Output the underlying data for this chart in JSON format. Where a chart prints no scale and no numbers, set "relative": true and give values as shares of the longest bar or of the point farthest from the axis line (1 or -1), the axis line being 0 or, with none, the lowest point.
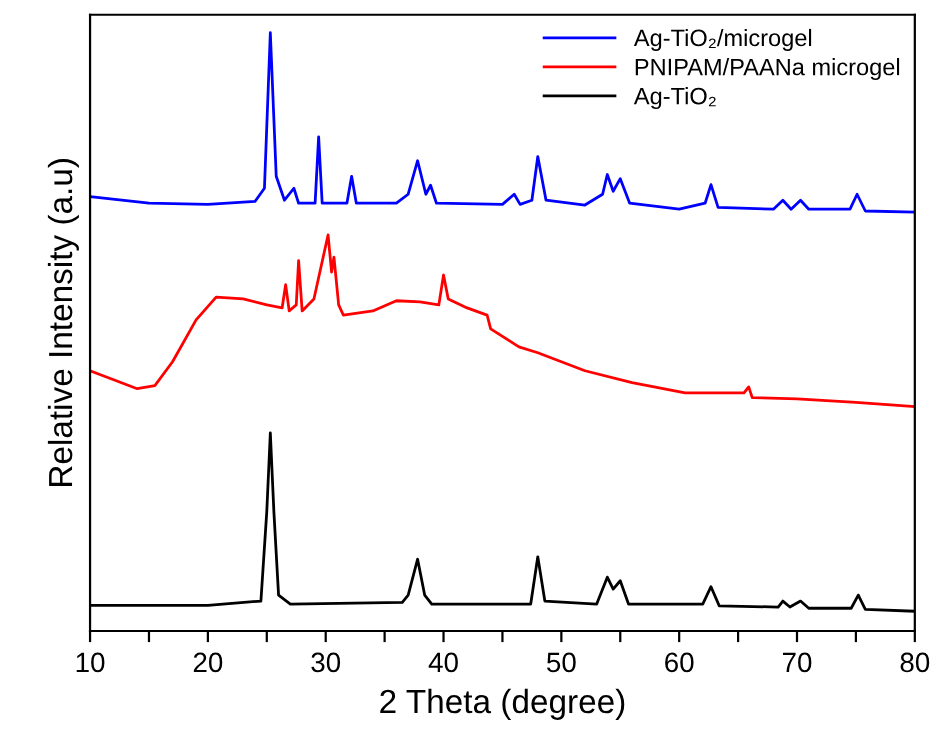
{
  "chart_data": {
    "type": "line",
    "xlabel": "2 Theta (degree)",
    "ylabel": "Relative Intensity (a.u)",
    "relative": true,
    "xlim": [
      10,
      80
    ],
    "xticks": [
      10,
      {
        "value": 15,
        "label": null
      },
      20,
      {
        "value": 25,
        "label": null
      },
      30,
      {
        "value": 35,
        "label": null
      },
      40,
      {
        "value": 45,
        "label": null
      },
      50,
      {
        "value": 55,
        "label": null
      },
      60,
      {
        "value": 65,
        "label": null
      },
      70,
      {
        "value": 75,
        "label": null
      },
      80
    ],
    "legend": "top right",
    "grid": false,
    "series": [
      {
        "name": "Ag-TiO₂/microgel",
        "color": "#0000ff",
        "x": [
          10,
          15,
          20,
          24,
          24.8,
          25.3,
          25.8,
          26.5,
          27.3,
          27.7,
          29.1,
          29.4,
          29.7,
          31.8,
          32.2,
          32.6,
          36,
          37,
          37.8,
          38.5,
          38.9,
          39.4,
          45,
          46,
          46.5,
          47.5,
          48,
          48.7,
          52,
          53.5,
          53.9,
          54.4,
          55,
          55.8,
          60,
          62.2,
          62.7,
          63.3,
          68,
          68.8,
          69.5,
          70.3,
          71,
          74.5,
          75.1,
          75.8,
          80
        ],
        "values": [
          0.726,
          0.715,
          0.713,
          0.718,
          0.74,
          1.0,
          0.76,
          0.72,
          0.74,
          0.715,
          0.715,
          0.826,
          0.715,
          0.715,
          0.76,
          0.715,
          0.715,
          0.73,
          0.786,
          0.73,
          0.745,
          0.715,
          0.713,
          0.73,
          0.713,
          0.72,
          0.793,
          0.72,
          0.712,
          0.73,
          0.763,
          0.735,
          0.756,
          0.715,
          0.705,
          0.715,
          0.746,
          0.708,
          0.705,
          0.72,
          0.705,
          0.72,
          0.705,
          0.705,
          0.73,
          0.702,
          0.7
        ]
      },
      {
        "name": "PNIPAM/PAANa microgel",
        "color": "#ff0000",
        "x": [
          10,
          12,
          14,
          15.5,
          17,
          19,
          20.7,
          23,
          25,
          26.3,
          26.6,
          26.9,
          27.5,
          27.7,
          28,
          29,
          30.2,
          30.5,
          30.7,
          31.1,
          31.5,
          34,
          36,
          38,
          39.6,
          40,
          40.4,
          42,
          43.7,
          44,
          46.4,
          48,
          50,
          52,
          56,
          60.5,
          65.5,
          65.9,
          66.2,
          70,
          75,
          80
        ],
        "values": [
          0.435,
          0.42,
          0.405,
          0.41,
          0.45,
          0.52,
          0.558,
          0.555,
          0.545,
          0.54,
          0.579,
          0.535,
          0.545,
          0.619,
          0.535,
          0.555,
          0.662,
          0.6,
          0.625,
          0.545,
          0.528,
          0.535,
          0.552,
          0.55,
          0.545,
          0.595,
          0.555,
          0.54,
          0.528,
          0.505,
          0.475,
          0.465,
          0.45,
          0.435,
          0.415,
          0.398,
          0.398,
          0.408,
          0.39,
          0.388,
          0.382,
          0.375
        ]
      },
      {
        "name": "Ag-TiO₂",
        "color": "#000000",
        "x": [
          10,
          20,
          24.5,
          25,
          25.3,
          25.6,
          26,
          27,
          36.5,
          37,
          37.8,
          38.4,
          39,
          47.4,
          48,
          48.6,
          53,
          53.9,
          54.4,
          55,
          55.7,
          62,
          62.7,
          63.4,
          68.4,
          68.8,
          69.4,
          70.3,
          71,
          74.6,
          75.2,
          75.8,
          80
        ],
        "values": [
          0.043,
          0.043,
          0.05,
          0.2,
          0.331,
          0.2,
          0.06,
          0.045,
          0.048,
          0.06,
          0.12,
          0.06,
          0.045,
          0.045,
          0.124,
          0.05,
          0.045,
          0.09,
          0.07,
          0.084,
          0.045,
          0.045,
          0.074,
          0.042,
          0.04,
          0.05,
          0.04,
          0.05,
          0.038,
          0.038,
          0.06,
          0.036,
          0.033
        ]
      }
    ]
  }
}
